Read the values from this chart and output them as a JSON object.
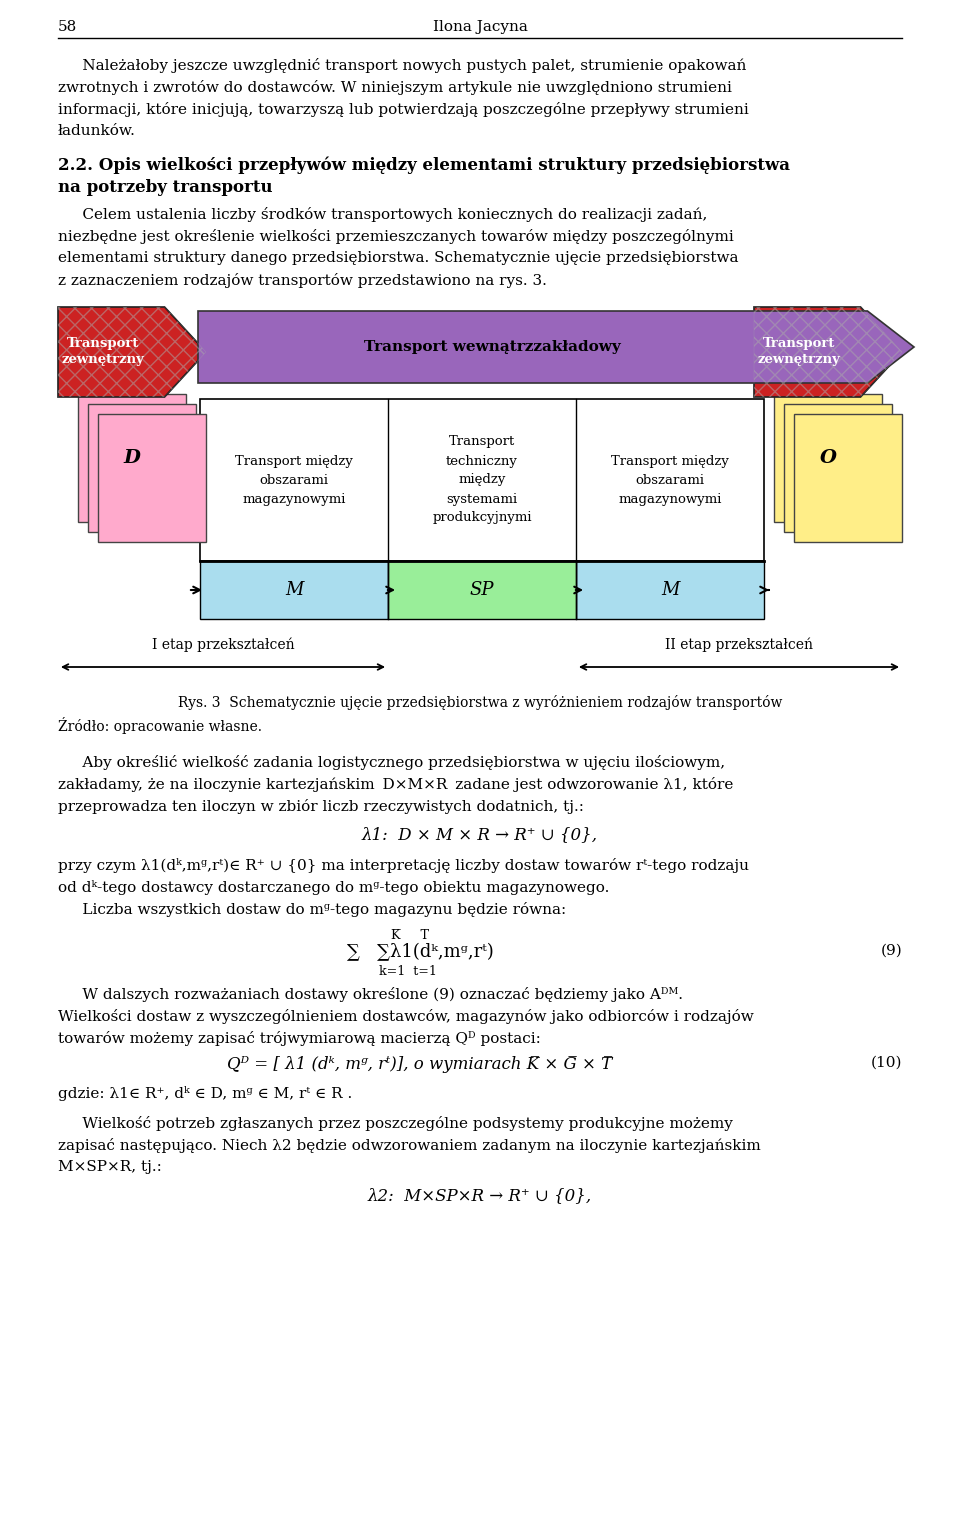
{
  "page_num": "58",
  "header_author": "Ilona Jacyna",
  "red_color": "#cc2222",
  "purple_color": "#9966bb",
  "light_blue": "#aaddee",
  "light_green": "#99ee99",
  "pink_color": "#ffaacc",
  "yellow_color": "#ffee88",
  "para1_lines": [
    "     Należałoby jeszcze uwzględnić transport nowych pustych palet, strumienie opakowań",
    "zwrotnych i zwrotów do dostawców. W niniejszym artykule nie uwzględniono strumieni",
    "informacji, które inicjują, towarzyszą lub potwierdzają poszczególne przepływy strumieni",
    "ładunków."
  ],
  "heading1": "2.2. Opis wielkości przepływów między elementami struktury przedsiębiorstwa",
  "heading2": "na potrzeby transportu",
  "para2_lines": [
    "     Celem ustalenia liczby środków transportowych koniecznych do realizacji zadań,",
    "niezbędne jest określenie wielkości przemieszczanych towarów między poszczególnymi",
    "elementami struktury danego przedsiębiorstwa. Schematycznie ujęcie przedsiębiorstwa",
    "z zaznaczeniem rodzajów transportów przedstawiono na rys. 3."
  ],
  "lbl_ext_left": "Transport\nzewnętrzny",
  "lbl_ext_right": "Transport\nzewnętrzny",
  "lbl_internal": "Transport wewnątrzzakładowy",
  "cell1": "Transport między\nobszarami\nmagazynowymi",
  "cell2": "Transport\ntechniczny\nmiędzy\nsystemami\nprodukcyjnymi",
  "cell3": "Transport między\nobszarami\nmagazynowymi",
  "lbl_D": "D",
  "lbl_M1": "M",
  "lbl_SP": "SP",
  "lbl_M2": "M",
  "lbl_O": "O",
  "etap1": "I etap przekształceń",
  "etap2": "II etap przekształceń",
  "rys_cap": "Rys. 3  Schematycznie ujęcie przedsiębiorstwa z wyróżnieniem rodzajów transportów",
  "source": "Źródło: opracowanie własne.",
  "para3_lines": [
    "     Aby określić wielkość zadania logistycznego przedsiębiorstwa w ujęciu ilościowym,",
    "zakładamy, że na iloczynie kartezjańskim  D×M×R  zadane jest odwzorowanie λ1, które",
    "przeprowadza ten iloczyn w zbiór liczb rzeczywistych dodatnich, tj.:"
  ],
  "formula1": "λ1:  D × M × R → R⁺ ∪ {0},",
  "para4_lines": [
    "przy czym λ1(dᵏ,mᵍ,rᵗ)∈ R⁺ ∪ {0} ma interpretację liczby dostaw towarów rᵗ-tego rodzaju",
    "od dᵏ-tego dostawcy dostarczanego do mᵍ-tego obiektu magazynowego."
  ],
  "para5": "     Liczba wszystkich dostaw do mᵍ-tego magazynu będzie równa:",
  "sum_top": "K̅     T̅",
  "sum_mid": "∑   ∑λ1(dᵏ,mᵍ,rᵗ)",
  "sum_bot": "k=1  t=1",
  "eq9": "(9)",
  "para6_lines": [
    "     W dalszych rozważaniach dostawy określone (9) oznaczać będziemy jako Aᴰᴹ.",
    "Wielkości dostaw z wyszczególnieniem dostawców, magazynów jako odbiorców i rodzajów",
    "towarów możemy zapisać trójwymiarową macierzą Qᴰ postaci:"
  ],
  "formula3": "Qᴰ = [ λ1 (dᵏ, mᵍ, rᵗ)], o wymiarach K̅ × G̅ × T̅",
  "eq10": "(10)",
  "para7": "gdzie: λ1∈ R⁺, dᵏ ∈ D, mᵍ ∈ M, rᵗ ∈ R .",
  "para8_lines": [
    "     Wielkość potrzeb zgłaszanych przez poszczególne podsystemy produkcyjne możemy",
    "zapisać następująco. Niech λ2 będzie odwzorowaniem zadanym na iloczynie kartezjańskim",
    "M×SP×R, tj.:"
  ],
  "formula4": "λ2:  M×SP×R → R⁺ ∪ {0},"
}
